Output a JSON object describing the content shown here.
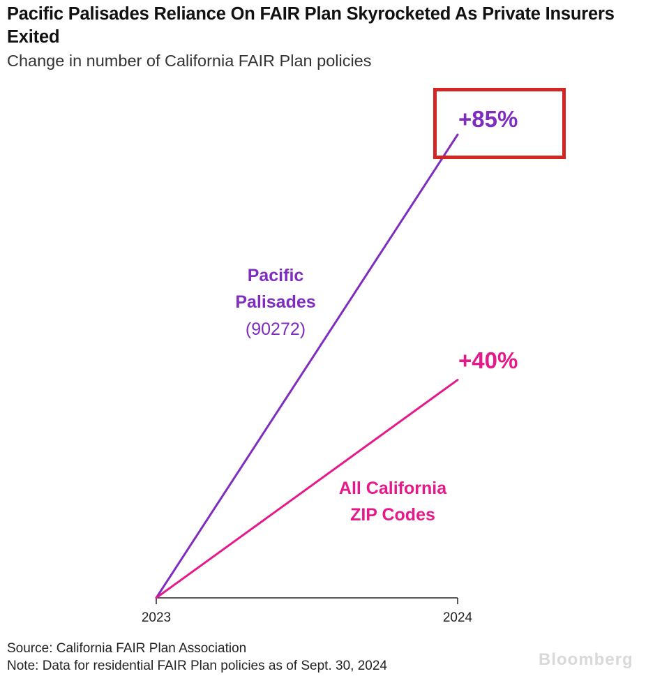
{
  "title": "Pacific Palisades Reliance On FAIR Plan Skyrocketed As Private Insurers Exited",
  "subtitle": "Change in number of California FAIR Plan policies",
  "source": "Source: California FAIR Plan Association",
  "note": "Note: Data for residential FAIR Plan policies as of Sept. 30, 2024",
  "watermark": "Bloomberg",
  "colors": {
    "pacific_palisades": "#7f2dbf",
    "all_california": "#e6198b",
    "highlight": "#d42525"
  },
  "chart_data": {
    "type": "line",
    "x": [
      "2023",
      "2024"
    ],
    "ylim": [
      0,
      85
    ],
    "grid": false,
    "series": [
      {
        "name": "Pacific Palisades (90272)",
        "label": "Pacific Palisades",
        "sublabel": "(90272)",
        "values": [
          0,
          85
        ],
        "end_label": "+85%",
        "color": "#7f2dbf"
      },
      {
        "name": "All California ZIP Codes",
        "label": "All California ZIP Codes",
        "values": [
          0,
          40
        ],
        "end_label": "+40%",
        "color": "#e6198b"
      }
    ],
    "annotation": "Red box highlights +85%"
  }
}
